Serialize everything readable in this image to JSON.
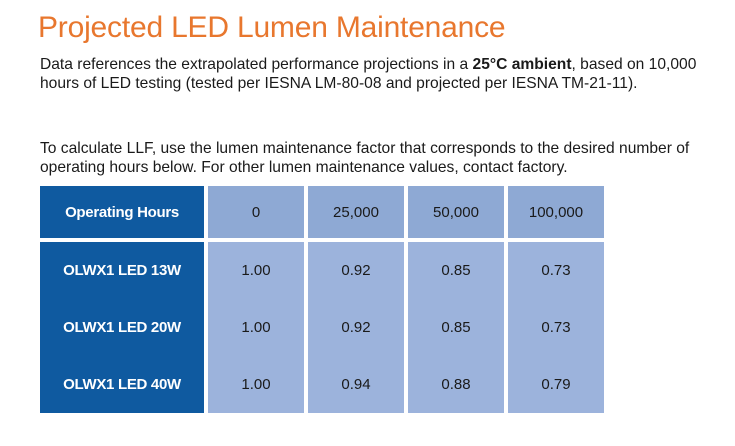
{
  "title": "Projected LED Lumen Maintenance",
  "paragraph1": {
    "before": "Data references the extrapolated performance projections in a ",
    "bold": "25°C ambient",
    "after": ", based on 10,000 hours of LED testing (tested per IESNA LM-80-08 and projected per IESNA TM-21-11)."
  },
  "paragraph2": "To calculate LLF, use the lumen maintenance factor that corresponds to the desired number of operating hours below. For other lumen maintenance values, contact factory.",
  "table": {
    "header": [
      "Operating Hours",
      "0",
      "25,000",
      "50,000",
      "100,000"
    ],
    "rows": [
      {
        "name": "OLWX1 LED 13W",
        "values": [
          "1.00",
          "0.92",
          "0.85",
          "0.73"
        ]
      },
      {
        "name": "OLWX1 LED 20W",
        "values": [
          "1.00",
          "0.92",
          "0.85",
          "0.73"
        ]
      },
      {
        "name": "OLWX1 LED 40W",
        "values": [
          "1.00",
          "0.94",
          "0.88",
          "0.79"
        ]
      }
    ]
  },
  "colors": {
    "title": "#e8772e",
    "dark_cell": "#0f5aa0",
    "light_cell": "#8ea9d4",
    "body_cell": "#9cb3dc"
  }
}
